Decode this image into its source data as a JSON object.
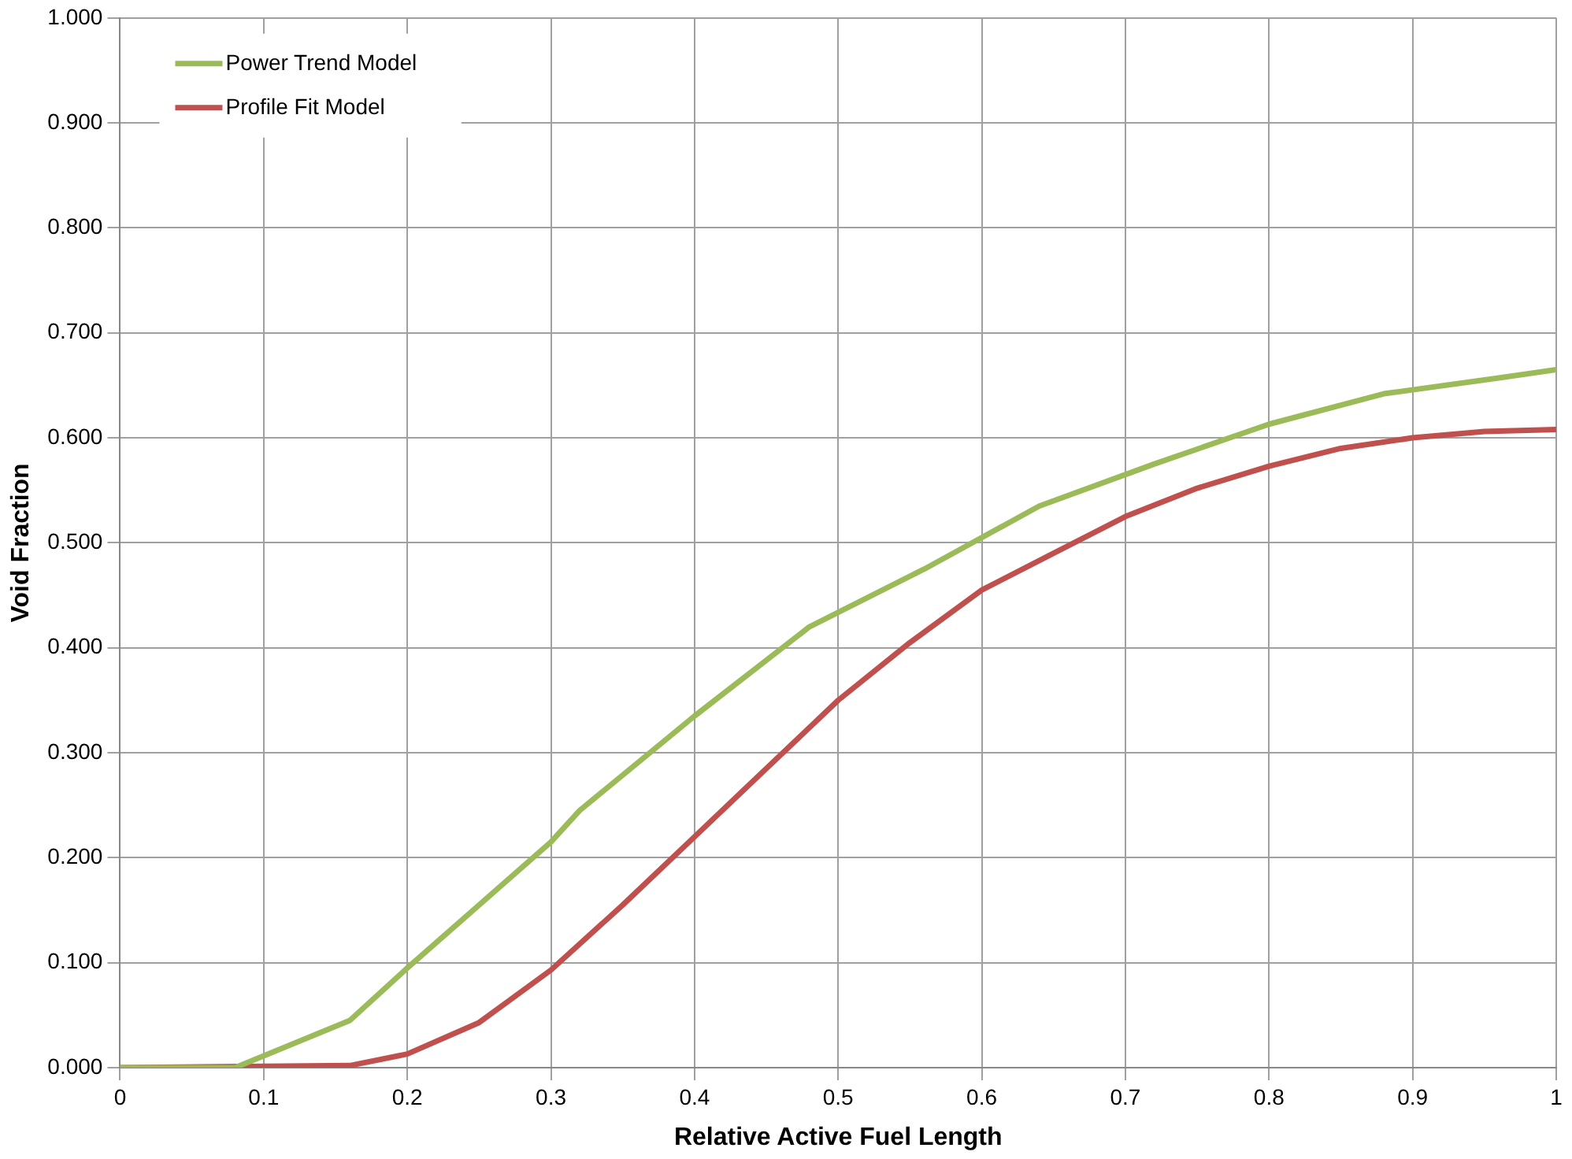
{
  "chart_data": {
    "type": "line",
    "xlabel": "Relative Active Fuel Length",
    "ylabel": "Void Fraction",
    "xlim": [
      0,
      1
    ],
    "xticks": [
      0,
      0.1,
      0.2,
      0.3,
      0.4,
      0.5,
      0.6,
      0.7,
      0.8,
      0.9,
      1
    ],
    "ylim": [
      0,
      1
    ],
    "yticks": [
      {
        "value": 0,
        "label": "0.000"
      },
      {
        "value": 0.1,
        "label": "0.100"
      },
      {
        "value": 0.2,
        "label": "0.200"
      },
      {
        "value": 0.3,
        "label": "0.300"
      },
      {
        "value": 0.4,
        "label": "0.400"
      },
      {
        "value": 0.5,
        "label": "0.500"
      },
      {
        "value": 0.6,
        "label": "0.600"
      },
      {
        "value": 0.7,
        "label": "0.700"
      },
      {
        "value": 0.8,
        "label": "0.800"
      },
      {
        "value": 0.9,
        "label": "0.900"
      },
      {
        "value": 1,
        "label": "1.000"
      }
    ],
    "grid": true,
    "legend": "top left",
    "marker": "none",
    "line_style": "solid",
    "series": [
      {
        "name": "Power Trend Model",
        "color": "#9bbb59",
        "x": [
          0,
          0.08,
          0.16,
          0.2,
          0.25,
          0.3,
          0.32,
          0.4,
          0.48,
          0.56,
          0.64,
          0.72,
          0.8,
          0.88,
          0.96,
          1
        ],
        "values": [
          0,
          0,
          0.045,
          0.095,
          0.155,
          0.215,
          0.245,
          0.335,
          0.42,
          0.475,
          0.535,
          0.575,
          0.613,
          0.642,
          0.657,
          0.665
        ]
      },
      {
        "name": "Profile Fit Model",
        "color": "#c0504d",
        "x": [
          0,
          0.16,
          0.2,
          0.25,
          0.3,
          0.35,
          0.4,
          0.45,
          0.5,
          0.55,
          0.6,
          0.65,
          0.7,
          0.75,
          0.8,
          0.85,
          0.9,
          0.95,
          1
        ],
        "values": [
          0,
          0.002,
          0.013,
          0.043,
          0.093,
          0.155,
          0.22,
          0.285,
          0.35,
          0.405,
          0.455,
          0.49,
          0.525,
          0.552,
          0.573,
          0.59,
          0.6,
          0.606,
          0.608
        ]
      }
    ]
  }
}
